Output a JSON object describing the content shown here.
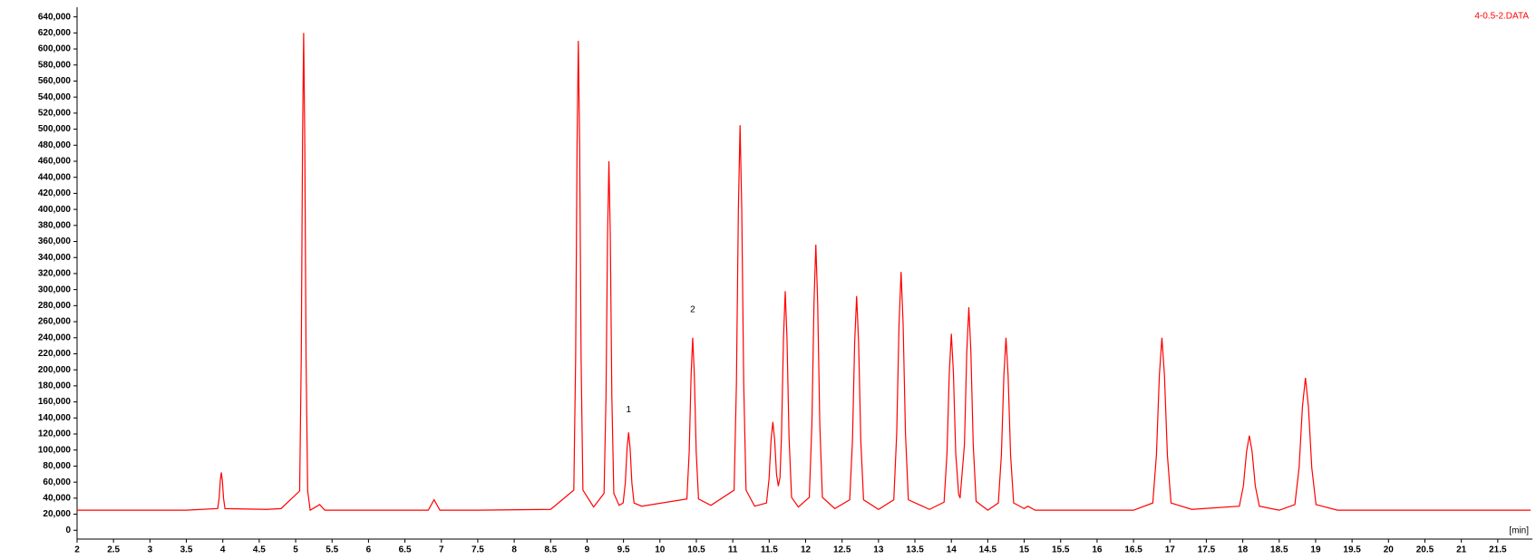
{
  "chart_data": {
    "type": "line",
    "x_label": "[min]",
    "x": [
      2.0,
      3.5,
      3.93,
      3.95,
      3.966,
      3.98,
      3.994,
      4.01,
      4.03,
      4.6,
      4.8,
      5.055,
      5.077,
      5.095,
      5.11,
      5.125,
      5.143,
      5.165,
      5.2,
      5.33,
      5.4,
      6.0,
      6.82,
      6.9,
      6.98,
      7.5,
      8.5,
      8.818,
      8.843,
      8.863,
      8.88,
      8.898,
      8.918,
      8.943,
      9.09,
      9.233,
      9.26,
      9.281,
      9.3,
      9.319,
      9.34,
      9.367,
      9.44,
      9.495,
      9.525,
      9.549,
      9.57,
      9.591,
      9.615,
      9.645,
      9.75,
      10.37,
      10.402,
      10.428,
      10.45,
      10.472,
      10.498,
      10.53,
      10.7,
      11.018,
      11.05,
      11.077,
      11.1,
      11.123,
      11.15,
      11.182,
      11.3,
      11.463,
      11.498,
      11.525,
      11.55,
      11.575,
      11.6,
      11.625,
      11.648,
      11.668,
      11.696,
      11.72,
      11.744,
      11.772,
      11.807,
      11.9,
      12.05,
      12.086,
      12.115,
      12.14,
      12.165,
      12.194,
      12.23,
      12.4,
      12.605,
      12.643,
      12.673,
      12.7,
      12.727,
      12.757,
      12.795,
      13.0,
      13.21,
      13.25,
      13.282,
      13.31,
      13.338,
      13.37,
      13.41,
      13.7,
      13.9,
      13.94,
      13.972,
      14.0,
      14.028,
      14.06,
      14.1,
      14.12,
      14.18,
      14.212,
      14.24,
      14.268,
      14.3,
      14.34,
      14.5,
      14.645,
      14.687,
      14.721,
      14.75,
      14.779,
      14.813,
      14.855,
      15.0,
      15.05,
      15.15,
      16.5,
      16.765,
      16.815,
      16.855,
      16.89,
      16.925,
      16.965,
      17.015,
      17.3,
      17.953,
      18.008,
      18.052,
      18.09,
      18.128,
      18.172,
      18.228,
      18.5,
      18.715,
      18.773,
      18.819,
      18.86,
      18.901,
      18.947,
      19.005,
      19.3,
      21.95
    ],
    "series": [
      {
        "name": "4-0.5-2.DATA",
        "color": "#ff0000",
        "values": [
          25000,
          25000,
          27000,
          40000,
          62000,
          72000,
          62000,
          40000,
          27000,
          26000,
          27000,
          49000,
          215000,
          489000,
          620000,
          489000,
          215000,
          49000,
          25000,
          32000,
          25000,
          25000,
          25000,
          38000,
          25000,
          25000,
          26000,
          50000,
          214000,
          482000,
          610000,
          482000,
          214000,
          50000,
          29000,
          46000,
          167000,
          365000,
          460000,
          365000,
          167000,
          46000,
          31000,
          34000,
          59000,
          102000,
          122000,
          102000,
          59000,
          34000,
          30000,
          39000,
          98000,
          194000,
          240000,
          194000,
          98000,
          39000,
          31000,
          50000,
          183000,
          401000,
          505000,
          401000,
          183000,
          50000,
          30000,
          34000,
          64000,
          112000,
          135000,
          112000,
          70000,
          55000,
          66000,
          116000,
          239000,
          298000,
          239000,
          116000,
          41000,
          29000,
          41000,
          133000,
          284000,
          356000,
          284000,
          133000,
          41000,
          27000,
          38000,
          112000,
          234000,
          292000,
          234000,
          112000,
          38000,
          26000,
          38000,
          121000,
          257000,
          322000,
          257000,
          121000,
          38000,
          26000,
          35000,
          96000,
          197000,
          245000,
          197000,
          96000,
          45000,
          40000,
          107000,
          223000,
          278000,
          223000,
          107000,
          36000,
          25000,
          34000,
          94000,
          193000,
          240000,
          193000,
          94000,
          34000,
          27000,
          30000,
          25000,
          25000,
          34000,
          94000,
          193000,
          240000,
          193000,
          94000,
          34000,
          26000,
          30000,
          55000,
          98000,
          118000,
          98000,
          55000,
          30000,
          25000,
          32000,
          78000,
          154000,
          190000,
          154000,
          78000,
          32000,
          25000,
          25000
        ]
      }
    ],
    "annotations": [
      {
        "text": "1",
        "x": 9.57,
        "y": 150000
      },
      {
        "text": "2",
        "x": 10.45,
        "y": 275000
      }
    ],
    "xlim": [
      2,
      21.95
    ],
    "ylim": [
      -11000,
      652000
    ],
    "xticks": [
      2,
      2.5,
      3,
      3.5,
      4,
      4.5,
      5,
      5.5,
      6,
      6.5,
      7,
      7.5,
      8,
      8.5,
      9,
      9.5,
      10,
      10.5,
      11,
      11.5,
      12,
      12.5,
      13,
      13.5,
      14,
      14.5,
      15,
      15.5,
      16,
      16.5,
      17,
      17.5,
      18,
      18.5,
      19,
      19.5,
      20,
      20.5,
      21,
      21.5
    ],
    "yticks": [
      0,
      {
        "value": 20000,
        "label": "20,000"
      },
      {
        "value": 40000,
        "label": "40,000"
      },
      {
        "value": 60000,
        "label": "60,000"
      },
      {
        "value": 80000,
        "label": "80,000"
      },
      {
        "value": 100000,
        "label": "100,000"
      },
      {
        "value": 120000,
        "label": "120,000"
      },
      {
        "value": 140000,
        "label": "140,000"
      },
      {
        "value": 160000,
        "label": "160,000"
      },
      {
        "value": 180000,
        "label": "180,000"
      },
      {
        "value": 200000,
        "label": "200,000"
      },
      {
        "value": 220000,
        "label": "220,000"
      },
      {
        "value": 240000,
        "label": "240,000"
      },
      {
        "value": 260000,
        "label": "260,000"
      },
      {
        "value": 280000,
        "label": "280,000"
      },
      {
        "value": 300000,
        "label": "300,000"
      },
      {
        "value": 320000,
        "label": "320,000"
      },
      {
        "value": 340000,
        "label": "340,000"
      },
      {
        "value": 360000,
        "label": "360,000"
      },
      {
        "value": 380000,
        "label": "380,000"
      },
      {
        "value": 400000,
        "label": "400,000"
      },
      {
        "value": 420000,
        "label": "420,000"
      },
      {
        "value": 440000,
        "label": "440,000"
      },
      {
        "value": 460000,
        "label": "460,000"
      },
      {
        "value": 480000,
        "label": "480,000"
      },
      {
        "value": 500000,
        "label": "500,000"
      },
      {
        "value": 520000,
        "label": "520,000"
      },
      {
        "value": 540000,
        "label": "540,000"
      },
      {
        "value": 560000,
        "label": "560,000"
      },
      {
        "value": 580000,
        "label": "580,000"
      },
      {
        "value": 600000,
        "label": "600,000"
      },
      {
        "value": 620000,
        "label": "620,000"
      },
      {
        "value": 640000,
        "label": "640,000"
      }
    ],
    "grid": false
  }
}
